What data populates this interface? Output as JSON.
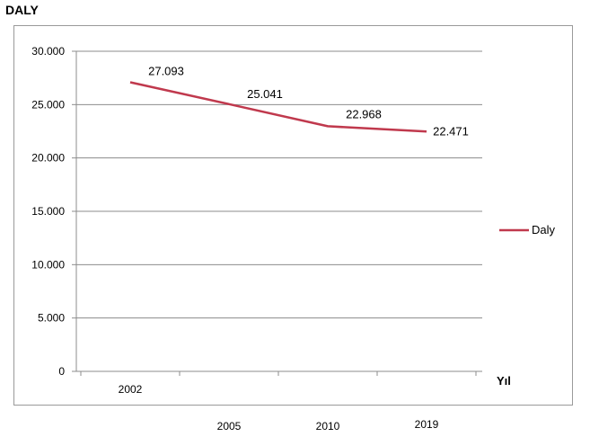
{
  "chart_data": {
    "type": "line",
    "ylabel": "DALY",
    "xlabel": "Yıl",
    "categories": [
      "2002",
      "2005",
      "2010",
      "2019"
    ],
    "series": [
      {
        "name": "Daly",
        "values": [
          27093,
          25041,
          22968,
          22471
        ],
        "data_labels": [
          "27.093",
          "25.041",
          "22.968",
          "22.471"
        ],
        "color": "#c0394d"
      }
    ],
    "ylim": [
      0,
      30000
    ],
    "yticks": [
      0,
      5000,
      10000,
      15000,
      20000,
      25000,
      30000
    ],
    "ytick_labels": [
      "0",
      "5.000",
      "10.000",
      "15.000",
      "20.000",
      "25.000",
      "30.000"
    ],
    "grid": true,
    "legend": "right"
  }
}
